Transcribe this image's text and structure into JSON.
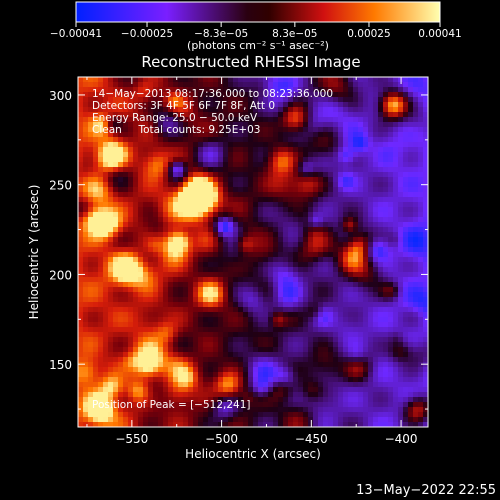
{
  "chart_data": {
    "type": "heatmap",
    "title": "Reconstructed RHESSI Image",
    "xlabel": "Heliocentric X (arcsec)",
    "ylabel": "Heliocentric Y (arcsec)",
    "xlim": [
      -580,
      -385
    ],
    "ylim": [
      115,
      310
    ],
    "x_ticks": [
      -550,
      -500,
      -450,
      -400
    ],
    "y_ticks": [
      150,
      200,
      250,
      300
    ],
    "x_tick_labels": [
      "−550",
      "−500",
      "−450",
      "−400"
    ],
    "y_tick_labels": [
      "150",
      "200",
      "250",
      "300"
    ],
    "colorbar": {
      "range": [
        -0.00041,
        0.00041
      ],
      "ticks": [
        -0.00041,
        -0.00025,
        -8.3e-05,
        8.3e-05,
        0.00025,
        0.00041
      ],
      "tick_labels": [
        "−0.00041",
        "−0.00025",
        "−8.3e−05",
        "8.3e−05",
        "0.00025",
        "0.00041"
      ],
      "units_label": "(photons cm⁻² s⁻¹ asec⁻²)"
    },
    "annotations": [
      "14−May−2013 08:17:36.000 to 08:23:36.000",
      "Detectors: 3F 4F 5F 6F 7F 8F, Att 0",
      "Energy Range: 25.0 − 50.0 keV",
      "Clean     Total counts: 9.25E+03"
    ],
    "peak_label": "Position of Peak = [−512,241]",
    "peak": [
      -512,
      241
    ],
    "timestamp": "13−May−2022 22:55"
  }
}
